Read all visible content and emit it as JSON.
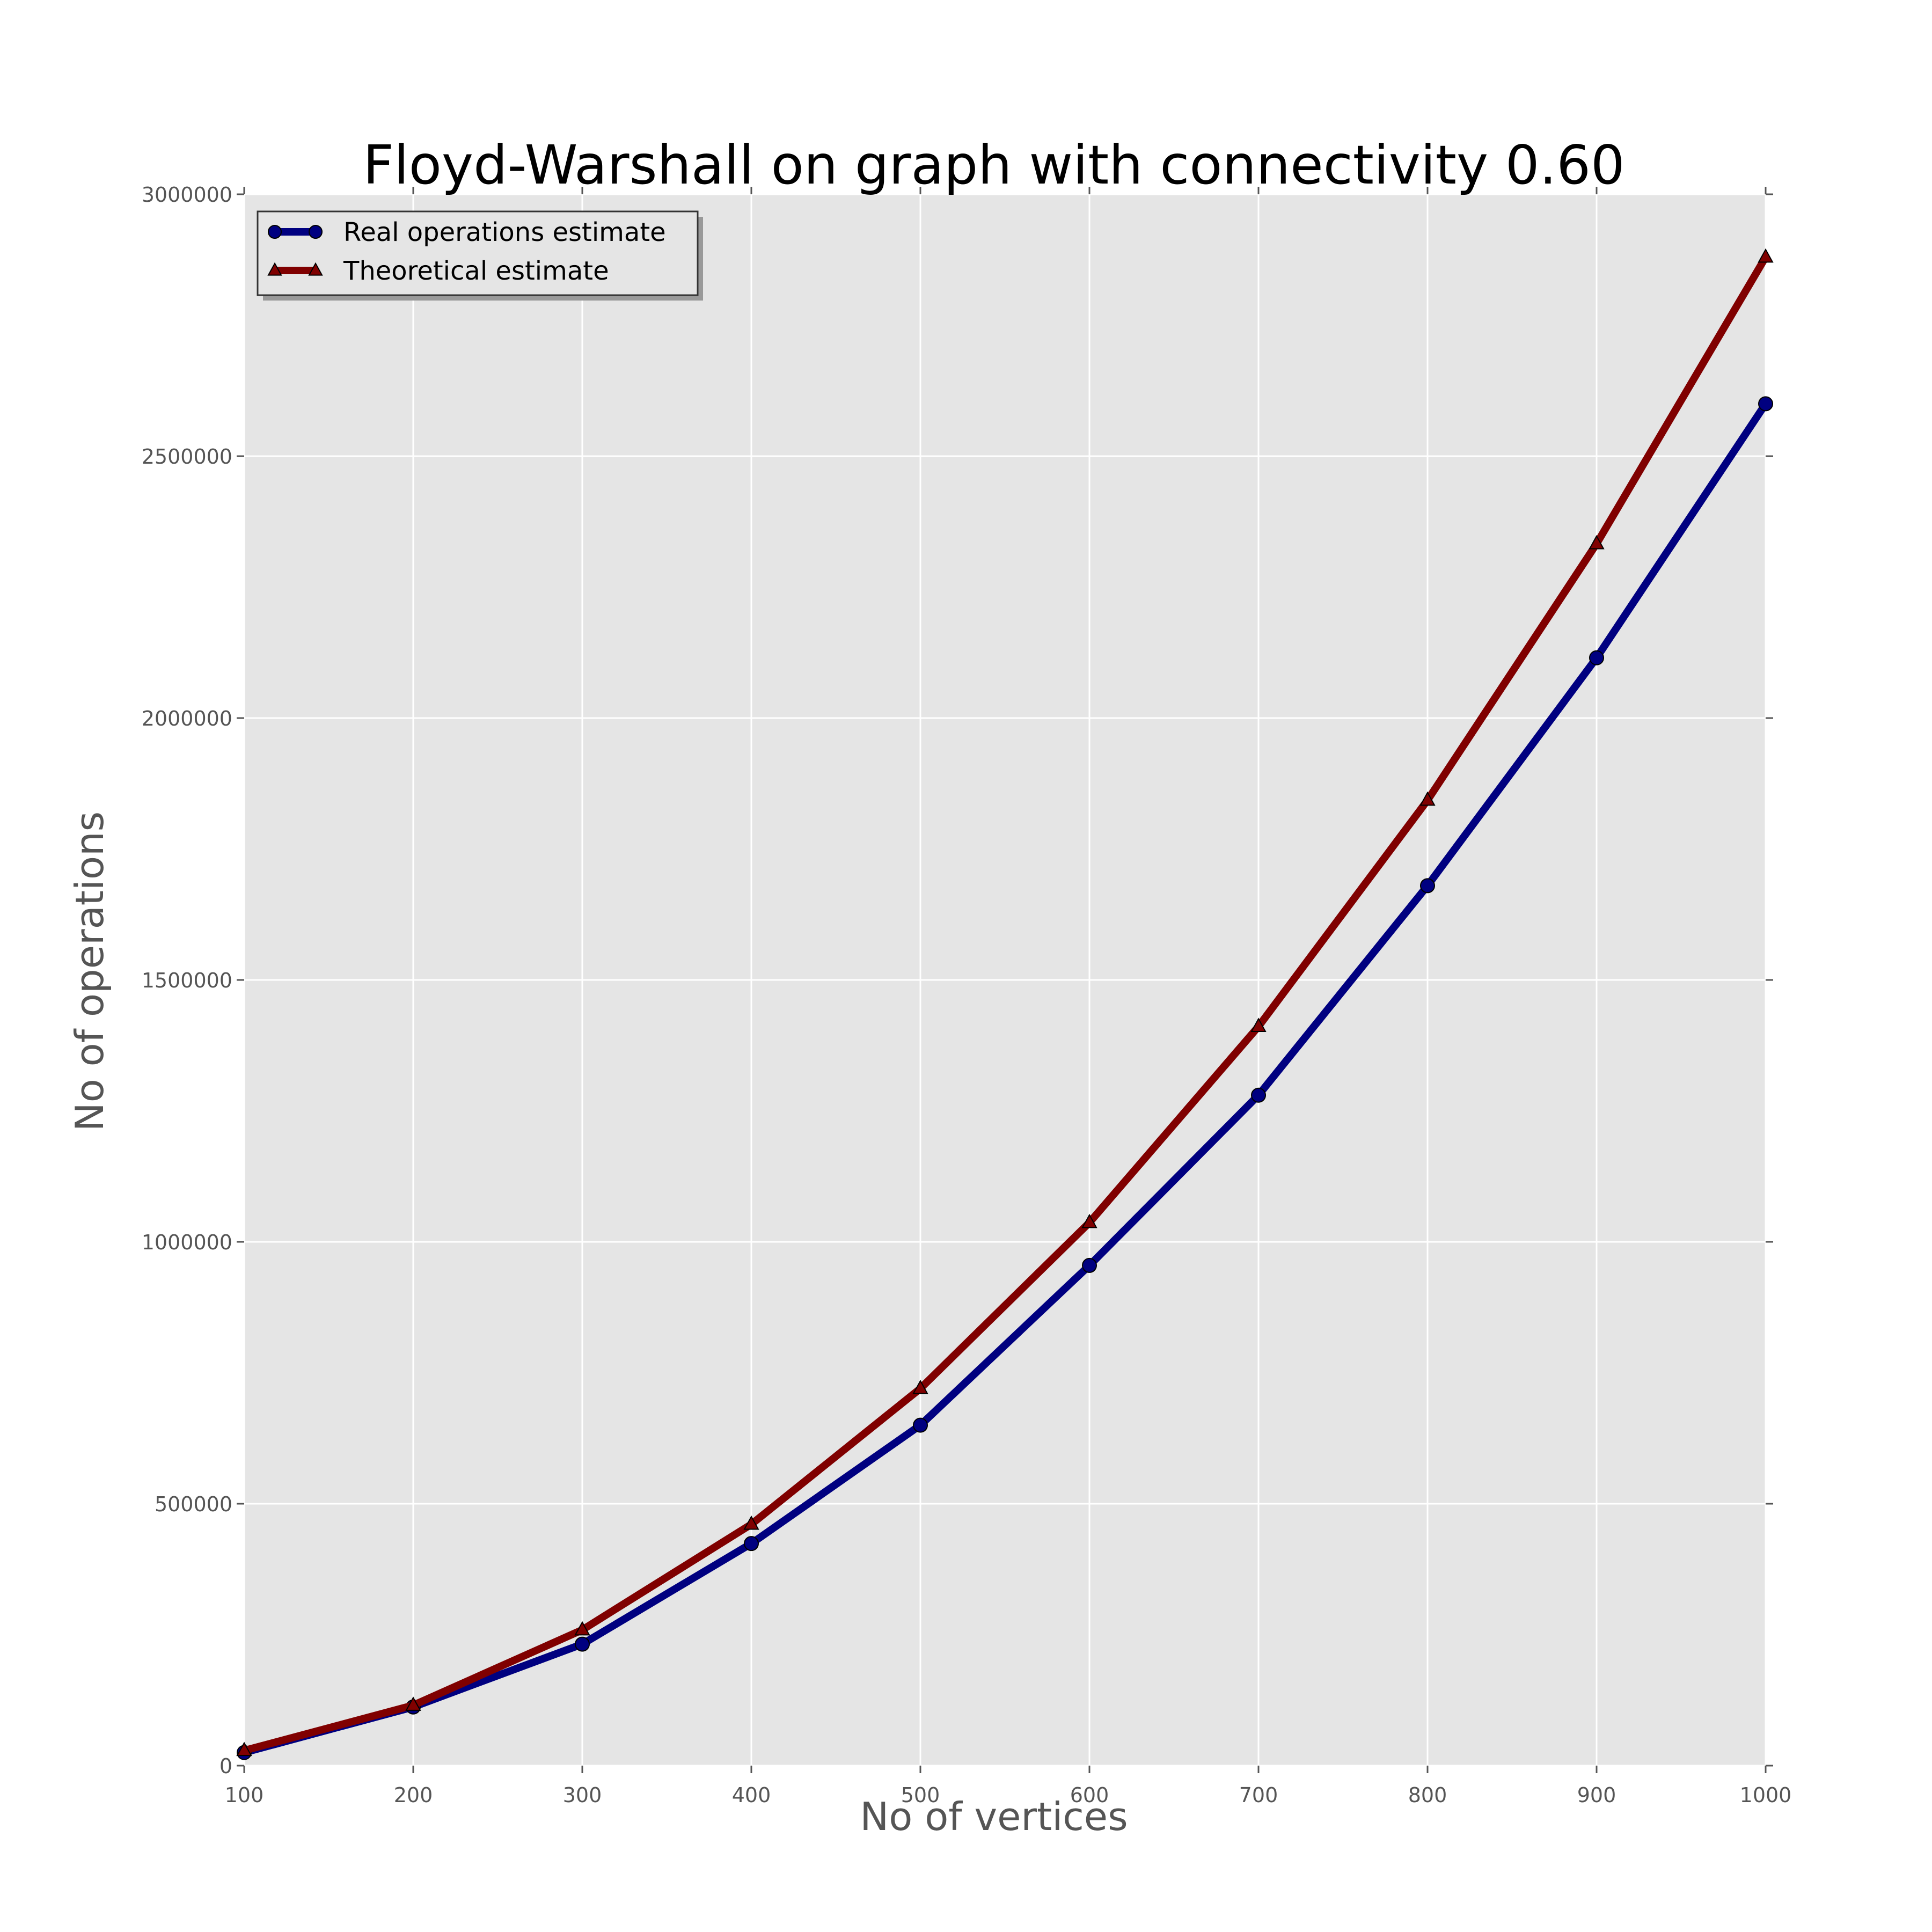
{
  "chart_data": {
    "type": "line",
    "title": "Floyd-Warshall on graph with connectivity 0.60",
    "xlabel": "No of vertices",
    "ylabel": "No of operations",
    "x": [
      100,
      200,
      300,
      400,
      500,
      600,
      700,
      800,
      900,
      1000
    ],
    "xlim": [
      100,
      1000
    ],
    "ylim": [
      0,
      3000000
    ],
    "xticks": [
      "100",
      "200",
      "300",
      "400",
      "500",
      "600",
      "700",
      "800",
      "900",
      "1000"
    ],
    "yticks": [
      "0",
      "500000",
      "1000000",
      "1500000",
      "2000000",
      "2500000",
      "3000000"
    ],
    "grid": true,
    "background": "#e5e5e5",
    "legend_position": "top-left",
    "series": [
      {
        "name": "Real operations estimate",
        "color": "#000080",
        "marker": "circle",
        "values": [
          25000,
          112000,
          232000,
          424000,
          650000,
          955000,
          1280000,
          1680000,
          2115000,
          2600000
        ]
      },
      {
        "name": "Theoretical estimate",
        "color": "#800000",
        "marker": "triangle",
        "values": [
          28800,
          115200,
          259200,
          460800,
          720000,
          1036800,
          1411200,
          1843200,
          2332800,
          2880000
        ]
      }
    ]
  }
}
